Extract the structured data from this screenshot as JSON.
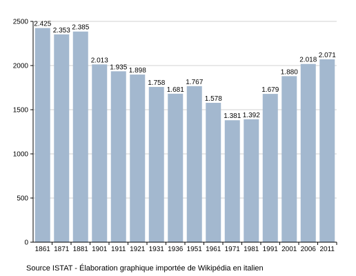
{
  "chart_data": {
    "type": "bar",
    "categories": [
      "1861",
      "1871",
      "1881",
      "1901",
      "1911",
      "1921",
      "1931",
      "1936",
      "1951",
      "1961",
      "1971",
      "1981",
      "1991",
      "2001",
      "2006",
      "2011"
    ],
    "values": [
      2425,
      2353,
      2385,
      2013,
      1935,
      1898,
      1758,
      1681,
      1767,
      1578,
      1381,
      1392,
      1679,
      1880,
      2018,
      2071
    ],
    "data_labels": [
      "2.425",
      "2.353",
      "2.385",
      "2.013",
      "1.935",
      "1.898",
      "1.758",
      "1.681",
      "1.767",
      "1.578",
      "1.381",
      "1.392",
      "1.679",
      "1.880",
      "2.018",
      "2.071"
    ],
    "y_ticks": [
      0,
      500,
      1000,
      1500,
      2000,
      2500
    ],
    "ylim": [
      0,
      2500
    ],
    "grid": true,
    "bar_color": "#a3b8cf",
    "grid_color": "#d0d0d0",
    "title": "",
    "xlabel": "",
    "ylabel": ""
  },
  "source_note": "Source ISTAT - Élaboration graphique importée de Wikipédia en italien"
}
